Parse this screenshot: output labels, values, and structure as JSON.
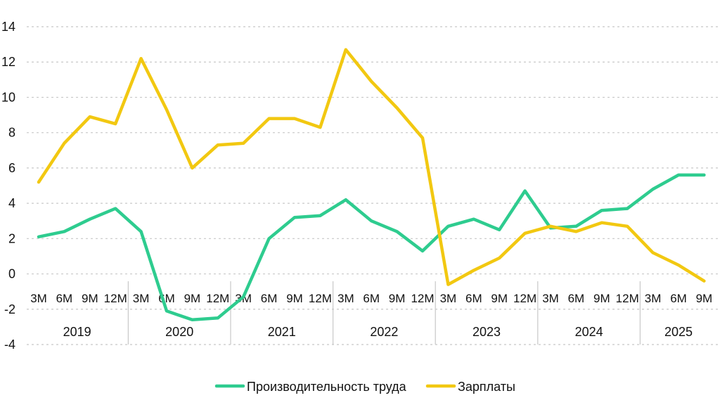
{
  "chart_data": {
    "type": "line",
    "ylim": [
      -4,
      14
    ],
    "yticks": [
      -4,
      -2,
      0,
      2,
      4,
      6,
      8,
      10,
      12,
      14
    ],
    "grid": true,
    "legend_position": "bottom",
    "categories": [
      "3M",
      "6M",
      "9M",
      "12M",
      "3M",
      "6M",
      "9M",
      "12M",
      "3M",
      "6M",
      "9M",
      "12M",
      "3M",
      "6M",
      "9M",
      "12M",
      "3M",
      "6M",
      "9M",
      "12M",
      "3M",
      "6M",
      "9M",
      "12M",
      "3M",
      "6M",
      "9M"
    ],
    "years": [
      "2019",
      "2020",
      "2021",
      "2022",
      "2023",
      "2024",
      "2025"
    ],
    "series": [
      {
        "name": "Производительность труда",
        "color": "#2ecc8f",
        "values": [
          2.1,
          2.4,
          3.1,
          3.7,
          2.4,
          -2.1,
          -2.6,
          -2.5,
          -1.3,
          2.0,
          3.2,
          3.3,
          4.2,
          3.0,
          2.4,
          1.3,
          2.7,
          3.1,
          2.5,
          4.7,
          2.6,
          2.7,
          3.6,
          3.7,
          4.8,
          5.6,
          5.6
        ]
      },
      {
        "name": "Зарплаты",
        "color": "#f2c811",
        "values": [
          5.2,
          7.4,
          8.9,
          8.5,
          12.2,
          9.3,
          6.0,
          7.3,
          7.4,
          8.8,
          8.8,
          8.3,
          12.7,
          10.9,
          9.4,
          7.7,
          -0.6,
          0.2,
          0.9,
          2.3,
          2.7,
          2.4,
          2.9,
          2.7,
          1.2,
          0.5,
          -0.4
        ]
      }
    ]
  }
}
